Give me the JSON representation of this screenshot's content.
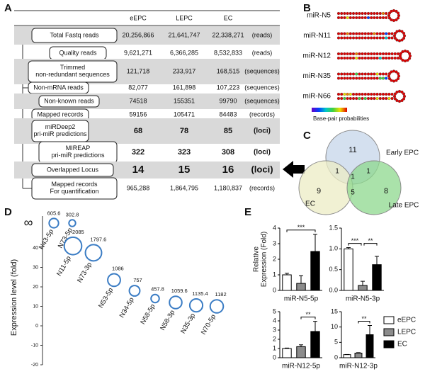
{
  "panels": [
    "A",
    "B",
    "C",
    "D",
    "E"
  ],
  "table": {
    "columns": [
      "eEPC",
      "LEPC",
      "EC"
    ],
    "rows": [
      [
        "Total Fastq reads",
        "20,256,866",
        "21,641,747",
        "22,338,271",
        "(reads)"
      ],
      [
        "Quality reads",
        "9,621,271",
        "6,366,285",
        "8,532,833",
        "(reads)"
      ],
      [
        "Trimmed\nnon-redundant sequences",
        "121,718",
        "233,917",
        "168,515",
        "(sequences)"
      ],
      [
        "Non-mRNA reads",
        "82,077",
        "161,898",
        "107,223",
        "(sequences)"
      ],
      [
        "Non-known reads",
        "74518",
        "155351",
        "99790",
        "(sequences)"
      ],
      [
        "Mapped records",
        "59156",
        "105471",
        "84483",
        "(records)"
      ],
      [
        "miRDeep2\npri-miR predictions",
        "68",
        "78",
        "85",
        "(loci)"
      ],
      [
        "MIREAP\npri-miR predictions",
        "322",
        "323",
        "308",
        "(loci)"
      ],
      [
        "Overlapped Locus",
        "14",
        "15",
        "16",
        "(loci)"
      ],
      [
        "Mapped records\nFor quantification",
        "965,288",
        "1,864,795",
        "1,180,837",
        "(records)"
      ]
    ]
  },
  "structures": {
    "names": [
      "miR-N5",
      "miR-N11",
      "miR-N12",
      "miR-N35",
      "miR-N66"
    ],
    "colorbar_label": "Base-pair probabilities"
  },
  "venn": {
    "sets": [
      "Early EPC",
      "EC",
      "Late EPC"
    ],
    "regions": [
      "11",
      "9",
      "8",
      "1",
      "1",
      "1",
      "5"
    ]
  },
  "chart_data": [
    {
      "type": "bubble",
      "y_label": "Expression level (fold)",
      "infinity_label": "∞",
      "ylim": [
        -20,
        40
      ],
      "yticks": [
        -20,
        -10,
        0,
        10,
        20,
        30,
        40
      ],
      "categories": [
        "N43-5p",
        "N73-5p",
        "N11-5p",
        "N73-3p",
        "N53-5p",
        "N34-5p",
        "N58-5p",
        "N58-3p",
        "N35-3p",
        "N70-5p"
      ],
      "values": [
        null,
        null,
        41,
        37.5,
        23.5,
        18,
        14,
        12,
        10.5,
        10
      ],
      "sizes": [
        605.6,
        302.8,
        2085,
        1797.6,
        1086,
        757,
        457.8,
        1059.6,
        1135.4,
        1182
      ],
      "color": "#3a7cc4"
    },
    {
      "type": "bar",
      "y_label": "Relative\nExpression (Fold)",
      "categories": [
        "miR-N5-5p"
      ],
      "ylim": [
        0,
        4
      ],
      "yticks": [
        0,
        1,
        2,
        3,
        4
      ],
      "series": [
        {
          "name": "eEPC",
          "color": "#ffffff",
          "values": [
            1.0
          ],
          "errors": [
            0.1
          ]
        },
        {
          "name": "LEPC",
          "color": "#8c8c8c",
          "values": [
            0.45
          ],
          "errors": [
            0.5
          ]
        },
        {
          "name": "EC",
          "color": "#000000",
          "values": [
            2.5
          ],
          "errors": [
            1.1
          ]
        }
      ],
      "annotations": [
        {
          "text": "***",
          "between": [
            "eEPC",
            "EC"
          ]
        }
      ]
    },
    {
      "type": "bar",
      "categories": [
        "miR-N5-3p"
      ],
      "ylim": [
        0,
        1.5
      ],
      "yticks": [
        {
          "value": 0,
          "label": "0.0"
        },
        0.5,
        {
          "value": 1,
          "label": "1.0"
        },
        1.5
      ],
      "series": [
        {
          "name": "eEPC",
          "color": "#ffffff",
          "values": [
            1.0
          ],
          "errors": [
            0.03
          ]
        },
        {
          "name": "LEPC",
          "color": "#8c8c8c",
          "values": [
            0.12
          ],
          "errors": [
            0.1
          ]
        },
        {
          "name": "EC",
          "color": "#000000",
          "values": [
            0.62
          ],
          "errors": [
            0.2
          ]
        }
      ],
      "annotations": [
        {
          "text": "***",
          "between": [
            "eEPC",
            "LEPC"
          ]
        },
        {
          "text": "**",
          "between": [
            "LEPC",
            "EC"
          ]
        }
      ]
    },
    {
      "type": "bar",
      "categories": [
        "miR-N12-5p"
      ],
      "ylim": [
        0,
        5
      ],
      "yticks": [
        0,
        1,
        2,
        3,
        4,
        5
      ],
      "series": [
        {
          "name": "eEPC",
          "color": "#ffffff",
          "values": [
            1.0
          ],
          "errors": [
            0.05
          ]
        },
        {
          "name": "LEPC",
          "color": "#8c8c8c",
          "values": [
            1.2
          ],
          "errors": [
            0.2
          ]
        },
        {
          "name": "EC",
          "color": "#000000",
          "values": [
            2.85
          ],
          "errors": [
            1.1
          ]
        }
      ],
      "annotations": [
        {
          "text": "**",
          "between": [
            "LEPC",
            "EC"
          ]
        }
      ]
    },
    {
      "type": "bar",
      "categories": [
        "miR-N12-3p"
      ],
      "ylim": [
        0,
        15
      ],
      "yticks": [
        0,
        5,
        10,
        15
      ],
      "series": [
        {
          "name": "eEPC",
          "color": "#ffffff",
          "values": [
            1.0
          ],
          "errors": [
            0.05
          ]
        },
        {
          "name": "LEPC",
          "color": "#8c8c8c",
          "values": [
            1.5
          ],
          "errors": [
            0.15
          ]
        },
        {
          "name": "EC",
          "color": "#000000",
          "values": [
            7.5
          ],
          "errors": [
            3.0
          ]
        }
      ],
      "annotations": [
        {
          "text": "**",
          "between": [
            "LEPC",
            "EC"
          ]
        }
      ],
      "legend": "right"
    }
  ]
}
